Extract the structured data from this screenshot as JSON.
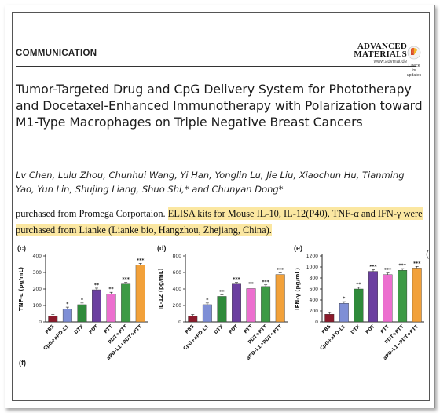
{
  "header": {
    "section": "COMMUNICATION",
    "journal_line1": "ADVANCED",
    "journal_line2": "MATERIALS",
    "journal_url": "www.advmat.de",
    "update_line1": "Check for",
    "update_line2": "updates"
  },
  "article": {
    "title": "Tumor-Targeted Drug and CpG Delivery System for Phototherapy and Docetaxel-Enhanced Immunotherapy with Polarization toward M1-Type Macrophages on Triple Negative Breast Cancers",
    "authors": "Lv Chen, Lulu Zhou, Chunhui Wang, Yi Han, Yonglin Lu, Jie Liu, Xiaochun Hu, Tianming Yao, Yun Lin, Shujing Liang, Shuo Shi,* and Chunyan Dong*",
    "excerpt_plain": "purchased from Promega Corportaion.",
    "excerpt_highlight": "ELISA kits for Mouse IL-10, IL-12(P40), TNF-α and IFN-γ were purchased from Lianke (Lianke bio, Hangzhou, Zhejiang, China)."
  },
  "figure": {
    "panel_f_label": "(f)",
    "right_edge_mark": "("
  },
  "colors": {
    "highlight": "#fbe7a1",
    "bars": [
      "#8b1a2b",
      "#7f8fd6",
      "#2f8a3b",
      "#6b3fa0",
      "#ec6fcf",
      "#3d9a45",
      "#f2a13a"
    ]
  },
  "chart_data": [
    {
      "panel": "(c)",
      "type": "bar",
      "ylabel": "TNF-α (pg/mL)",
      "ylim": [
        0,
        400
      ],
      "yticks": [
        0,
        100,
        200,
        300,
        400
      ],
      "categories": [
        "PBS",
        "CpG+aPD-L1",
        "DTX",
        "PDT",
        "PTT",
        "PDT+PTT",
        "aPD-L1+PDT+PTT"
      ],
      "values": [
        35,
        80,
        105,
        195,
        170,
        230,
        345
      ],
      "significance": [
        "",
        "*",
        "*",
        "**",
        "**",
        "***",
        "***"
      ]
    },
    {
      "panel": "(d)",
      "type": "bar",
      "ylabel": "IL-12 (pg/mL)",
      "ylim": [
        0,
        800
      ],
      "yticks": [
        0,
        200,
        400,
        600,
        800
      ],
      "categories": [
        "PBS",
        "CpG+aPD-L1",
        "DTX",
        "PDT",
        "PTT",
        "PDT+PTT",
        "aPD-L1+PDT+PTT"
      ],
      "values": [
        70,
        210,
        310,
        460,
        405,
        430,
        575
      ],
      "significance": [
        "",
        "*",
        "**",
        "***",
        "**",
        "***",
        "***"
      ]
    },
    {
      "panel": "(e)",
      "type": "bar",
      "ylabel": "IFN-γ (pg/mL)",
      "ylim": [
        0,
        1200
      ],
      "yticks": [
        0,
        200,
        400,
        600,
        800,
        1000,
        1200
      ],
      "categories": [
        "PBS",
        "CpG+aPD-L1",
        "DTX",
        "PDT",
        "PTT",
        "PDT+PTT",
        "aPD-L1+PDT+PTT"
      ],
      "values": [
        140,
        340,
        600,
        920,
        860,
        940,
        980
      ],
      "significance": [
        "",
        "*",
        "**",
        "***",
        "***",
        "***",
        "***"
      ]
    }
  ]
}
